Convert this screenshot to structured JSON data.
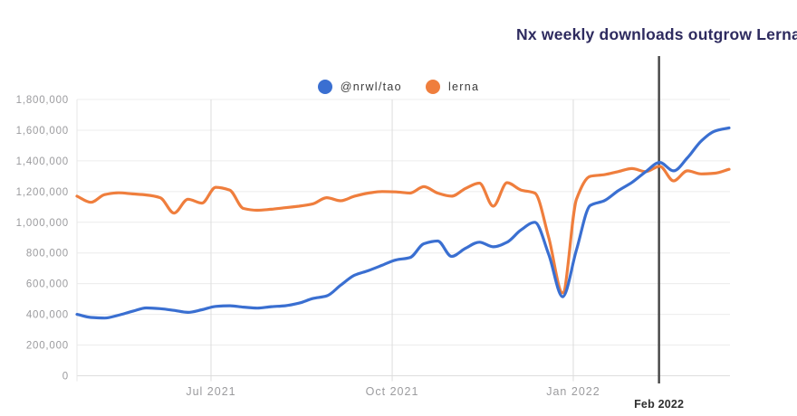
{
  "header": {
    "title": "Nx weekly downloads outgrow Lerna"
  },
  "chart_data": {
    "type": "line",
    "title": "Nx weekly downloads outgrow Lerna",
    "x_unit": "weeks",
    "ylim": [
      0,
      1800000
    ],
    "grid": {
      "horizontal": true,
      "vertical": true
    },
    "legend_position": "top-center",
    "x_ticks": [
      {
        "label": "Jul 2021",
        "week": 9.66
      },
      {
        "label": "Oct 2021",
        "week": 22.72
      },
      {
        "label": "Jan 2022",
        "week": 35.77
      }
    ],
    "y_ticks": [
      {
        "value": 0,
        "label": "0"
      },
      {
        "value": 200000,
        "label": "200,000"
      },
      {
        "value": 400000,
        "label": "400,000"
      },
      {
        "value": 600000,
        "label": "600,000"
      },
      {
        "value": 800000,
        "label": "800,000"
      },
      {
        "value": 1000000,
        "label": "1,000,000"
      },
      {
        "value": 1200000,
        "label": "1,200,000"
      },
      {
        "value": 1400000,
        "label": "1,400,000"
      },
      {
        "value": 1600000,
        "label": "1,600,000"
      },
      {
        "value": 1800000,
        "label": "1,800,000"
      }
    ],
    "annotation": {
      "label": "Feb 2022",
      "week": 41.95,
      "color": "#454545",
      "label_color": "#2f2f2f"
    },
    "series": [
      {
        "name": "@nrwl/tao",
        "color": "#3a6fd1",
        "values": [
          400000,
          380000,
          376000,
          395000,
          420000,
          442000,
          437000,
          426000,
          413000,
          430000,
          452000,
          456000,
          447000,
          441000,
          450000,
          456000,
          473000,
          503000,
          520000,
          590000,
          655000,
          685000,
          720000,
          755000,
          770000,
          860000,
          878000,
          778000,
          830000,
          870000,
          840000,
          870000,
          950000,
          1000000,
          790000,
          515000,
          820000,
          1110000,
          1140000,
          1205000,
          1260000,
          1330000,
          1390000,
          1335000,
          1420000,
          1530000,
          1595000,
          1615000
        ]
      },
      {
        "name": "lerna",
        "color": "#ef7e3d",
        "values": [
          1170000,
          1130000,
          1180000,
          1192000,
          1185000,
          1178000,
          1160000,
          1060000,
          1150000,
          1125000,
          1228000,
          1210000,
          1090000,
          1078000,
          1085000,
          1095000,
          1105000,
          1120000,
          1160000,
          1140000,
          1170000,
          1190000,
          1200000,
          1198000,
          1190000,
          1232000,
          1190000,
          1170000,
          1220000,
          1255000,
          1105000,
          1258000,
          1210000,
          1190000,
          900000,
          540000,
          1150000,
          1300000,
          1310000,
          1330000,
          1350000,
          1330000,
          1365000,
          1270000,
          1335000,
          1315000,
          1320000,
          1345000
        ]
      }
    ],
    "axis_colors": {
      "tick_label": "#9b9b9e",
      "grid_h": "#ececec",
      "grid_v": "#dcdcdc",
      "axis_line": "#dedede"
    }
  }
}
